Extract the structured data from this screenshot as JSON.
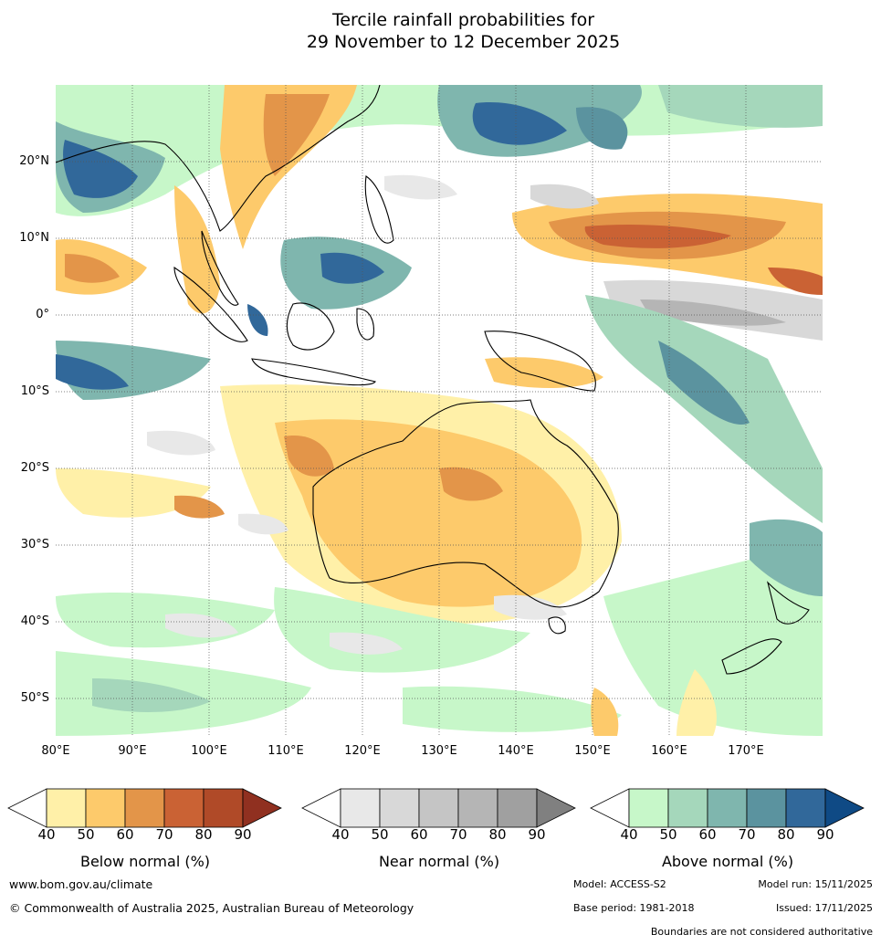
{
  "title": {
    "line1": "Tercile rainfall probabilities for",
    "line2": "29 November to 12 December 2025"
  },
  "map": {
    "lat_ticks": [
      "20°N",
      "10°N",
      "0°",
      "10°S",
      "20°S",
      "30°S",
      "40°S",
      "50°S"
    ],
    "lon_ticks": [
      "80°E",
      "90°E",
      "100°E",
      "110°E",
      "120°E",
      "130°E",
      "140°E",
      "150°E",
      "160°E",
      "170°E"
    ],
    "lon_range": [
      80,
      180
    ],
    "lat_range": [
      -55,
      30
    ]
  },
  "legend": {
    "ticks": [
      "40",
      "50",
      "60",
      "70",
      "80",
      "90"
    ],
    "below": {
      "label": "Below normal (%)",
      "colors": [
        "#fff0a8",
        "#fdca6b",
        "#e39549",
        "#ca6234",
        "#b04a28",
        "#903020"
      ]
    },
    "near": {
      "label": "Near normal (%)",
      "colors": [
        "#e8e8e8",
        "#d8d8d8",
        "#c5c5c5",
        "#b5b5b5",
        "#a0a0a0",
        "#808080"
      ]
    },
    "above": {
      "label": "Above normal (%)",
      "colors": [
        "#c7f7c9",
        "#a5d7bb",
        "#7fb6ae",
        "#5b939f",
        "#31689a",
        "#0f4a85"
      ]
    }
  },
  "footer": {
    "website": "www.bom.gov.au/climate",
    "copyright": "© Commonwealth of Australia 2025, Australian Bureau of Meteorology",
    "model": "Model: ACCESS-S2",
    "model_run": "Model run: 15/11/2025",
    "base_period": "Base period: 1981-2018",
    "issued": "Issued: 17/11/2025",
    "disclaimer": "Boundaries are not considered authoritative"
  }
}
